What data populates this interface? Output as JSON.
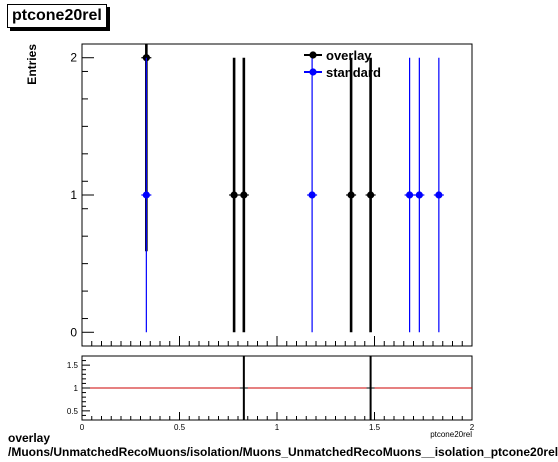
{
  "title": "ptcone20rel",
  "footer": {
    "line1": "overlay",
    "line2": "/Muons/UnmatchedRecoMuons/isolation/Muons_UnmatchedRecoMuons__isolation_ptcone20rel"
  },
  "colors": {
    "overlay": "#000000",
    "standard": "#0000ff",
    "ratio_line": "#cc0000"
  },
  "chart_data": [
    {
      "type": "scatter",
      "title": "ptcone20rel",
      "xlabel": "ptcone20rel",
      "ylabel": "Entries",
      "xlim": [
        0,
        2
      ],
      "ylim": [
        -0.1,
        2.1
      ],
      "x_ticks": [
        "0",
        "0.5",
        "1",
        "1.5",
        "2"
      ],
      "y_ticks": [
        "0",
        "1",
        "2"
      ],
      "legend_position": "top-right",
      "series": [
        {
          "name": "overlay",
          "color": "#000000",
          "points": [
            {
              "x": 0.33,
              "y": 2,
              "err": 1.41
            },
            {
              "x": 0.78,
              "y": 1,
              "err": 1
            },
            {
              "x": 0.83,
              "y": 1,
              "err": 1
            },
            {
              "x": 1.38,
              "y": 1,
              "err": 1
            },
            {
              "x": 1.48,
              "y": 1,
              "err": 1
            }
          ]
        },
        {
          "name": "standard",
          "color": "#0000ff",
          "points": [
            {
              "x": 0.33,
              "y": 1,
              "err": 1
            },
            {
              "x": 1.18,
              "y": 1,
              "err": 1
            },
            {
              "x": 1.68,
              "y": 1,
              "err": 1
            },
            {
              "x": 1.73,
              "y": 1,
              "err": 1
            },
            {
              "x": 1.83,
              "y": 1,
              "err": 1
            }
          ]
        }
      ]
    },
    {
      "type": "scatter",
      "title": "",
      "xlabel": "ptcone20rel",
      "ylabel": "",
      "xlim": [
        0,
        2
      ],
      "ylim": [
        0.3,
        1.7
      ],
      "y_ticks": [
        "0.5",
        "1",
        "1.5"
      ],
      "reference_line": 1,
      "points": [
        {
          "x": 0.83,
          "y": 1,
          "err": 1
        },
        {
          "x": 1.48,
          "y": 1,
          "err": 1
        }
      ]
    }
  ]
}
